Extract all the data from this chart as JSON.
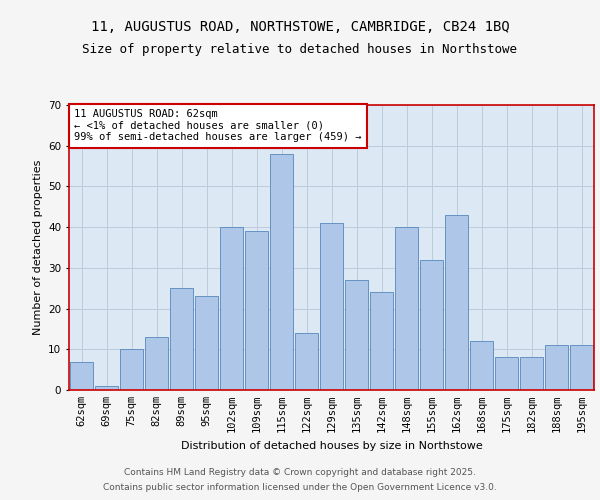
{
  "title_line1": "11, AUGUSTUS ROAD, NORTHSTOWE, CAMBRIDGE, CB24 1BQ",
  "title_line2": "Size of property relative to detached houses in Northstowe",
  "xlabel": "Distribution of detached houses by size in Northstowe",
  "ylabel": "Number of detached properties",
  "categories": [
    "62sqm",
    "69sqm",
    "75sqm",
    "82sqm",
    "89sqm",
    "95sqm",
    "102sqm",
    "109sqm",
    "115sqm",
    "122sqm",
    "129sqm",
    "135sqm",
    "142sqm",
    "148sqm",
    "155sqm",
    "162sqm",
    "168sqm",
    "175sqm",
    "182sqm",
    "188sqm",
    "195sqm"
  ],
  "values": [
    7,
    1,
    10,
    13,
    25,
    23,
    40,
    39,
    58,
    14,
    41,
    27,
    24,
    40,
    32,
    43,
    12,
    8,
    8,
    11,
    11
  ],
  "bar_color": "#aec6e8",
  "bar_edge_color": "#5588bb",
  "annotation_text": "11 AUGUSTUS ROAD: 62sqm\n← <1% of detached houses are smaller (0)\n99% of semi-detached houses are larger (459) →",
  "annotation_box_color": "#ffffff",
  "annotation_box_edge": "#cc0000",
  "ylim": [
    0,
    70
  ],
  "yticks": [
    0,
    10,
    20,
    30,
    40,
    50,
    60,
    70
  ],
  "grid_color": "#bbccdd",
  "bg_color": "#dce9f5",
  "fig_bg_color": "#f5f5f5",
  "footer_line1": "Contains HM Land Registry data © Crown copyright and database right 2025.",
  "footer_line2": "Contains public sector information licensed under the Open Government Licence v3.0.",
  "title_fontsize": 10,
  "subtitle_fontsize": 9,
  "axis_label_fontsize": 8,
  "tick_fontsize": 7.5,
  "annotation_fontsize": 7.5,
  "footer_fontsize": 6.5
}
